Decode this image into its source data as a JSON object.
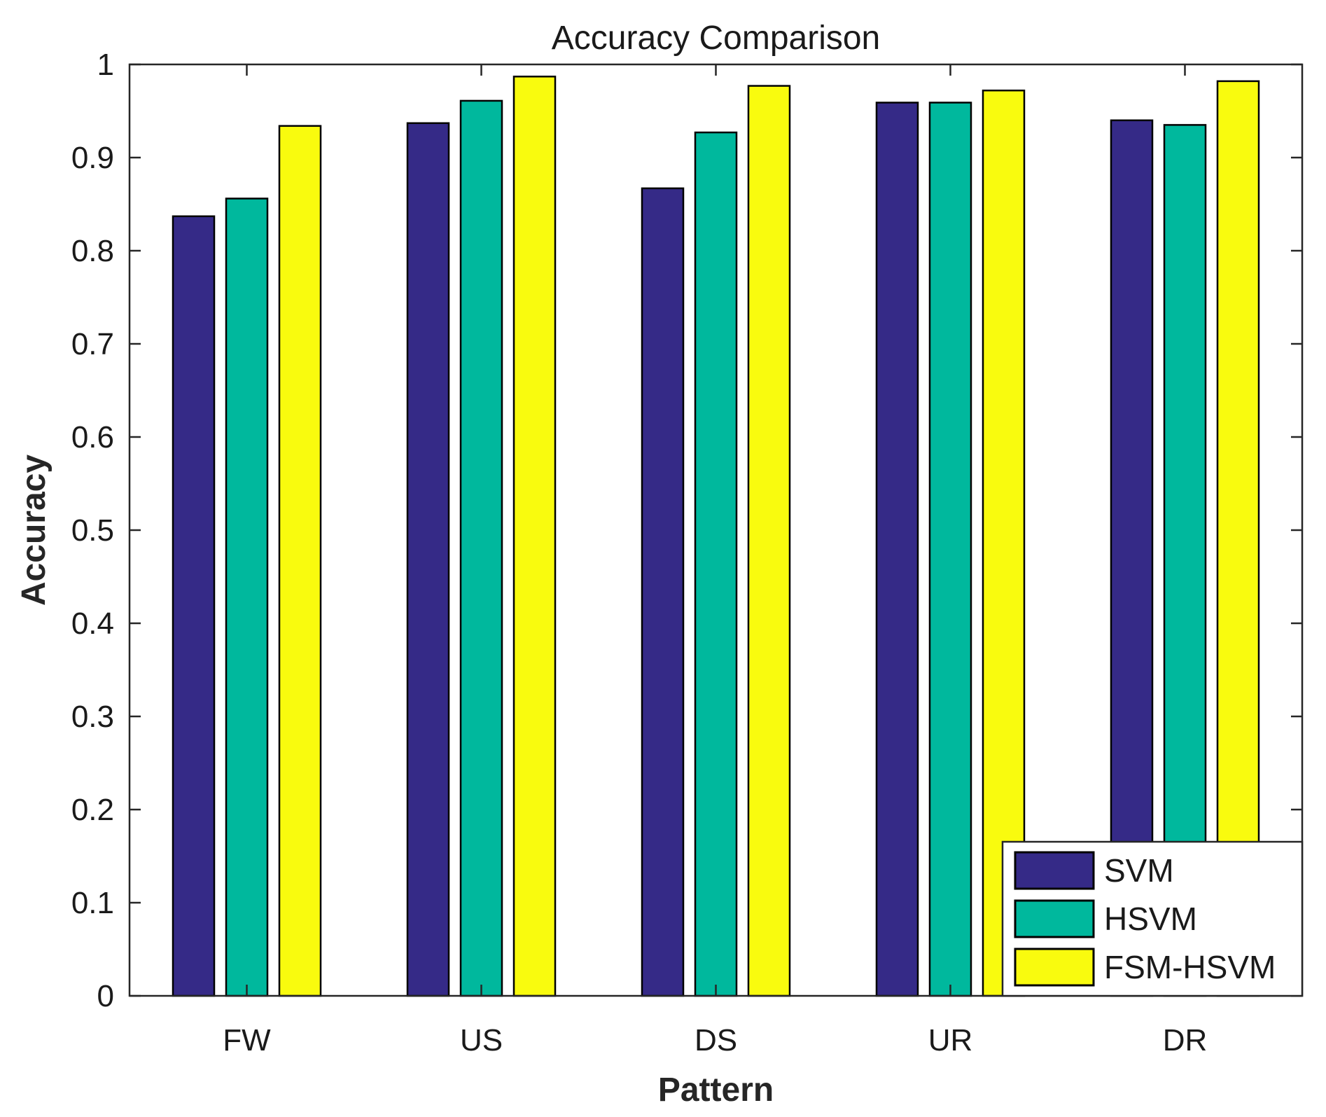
{
  "chart_data": {
    "type": "bar",
    "title": "Accuracy Comparison",
    "xlabel": "Pattern",
    "ylabel": "Accuracy",
    "ylim": [
      0,
      1
    ],
    "yticks": [
      "0",
      "0.1",
      "0.2",
      "0.3",
      "0.4",
      "0.5",
      "0.6",
      "0.7",
      "0.8",
      "0.9",
      "1"
    ],
    "categories": [
      "FW",
      "US",
      "DS",
      "UR",
      "DR"
    ],
    "series": [
      {
        "name": "SVM",
        "color": "#352a87",
        "values": [
          0.837,
          0.937,
          0.867,
          0.959,
          0.94
        ]
      },
      {
        "name": "HSVM",
        "color": "#00b89d",
        "values": [
          0.856,
          0.961,
          0.927,
          0.959,
          0.935
        ]
      },
      {
        "name": "FSM-HSVM",
        "color": "#f9fb0e",
        "values": [
          0.934,
          0.987,
          0.977,
          0.972,
          0.982
        ]
      }
    ],
    "legend_position": "bottom-right",
    "grid": false
  }
}
